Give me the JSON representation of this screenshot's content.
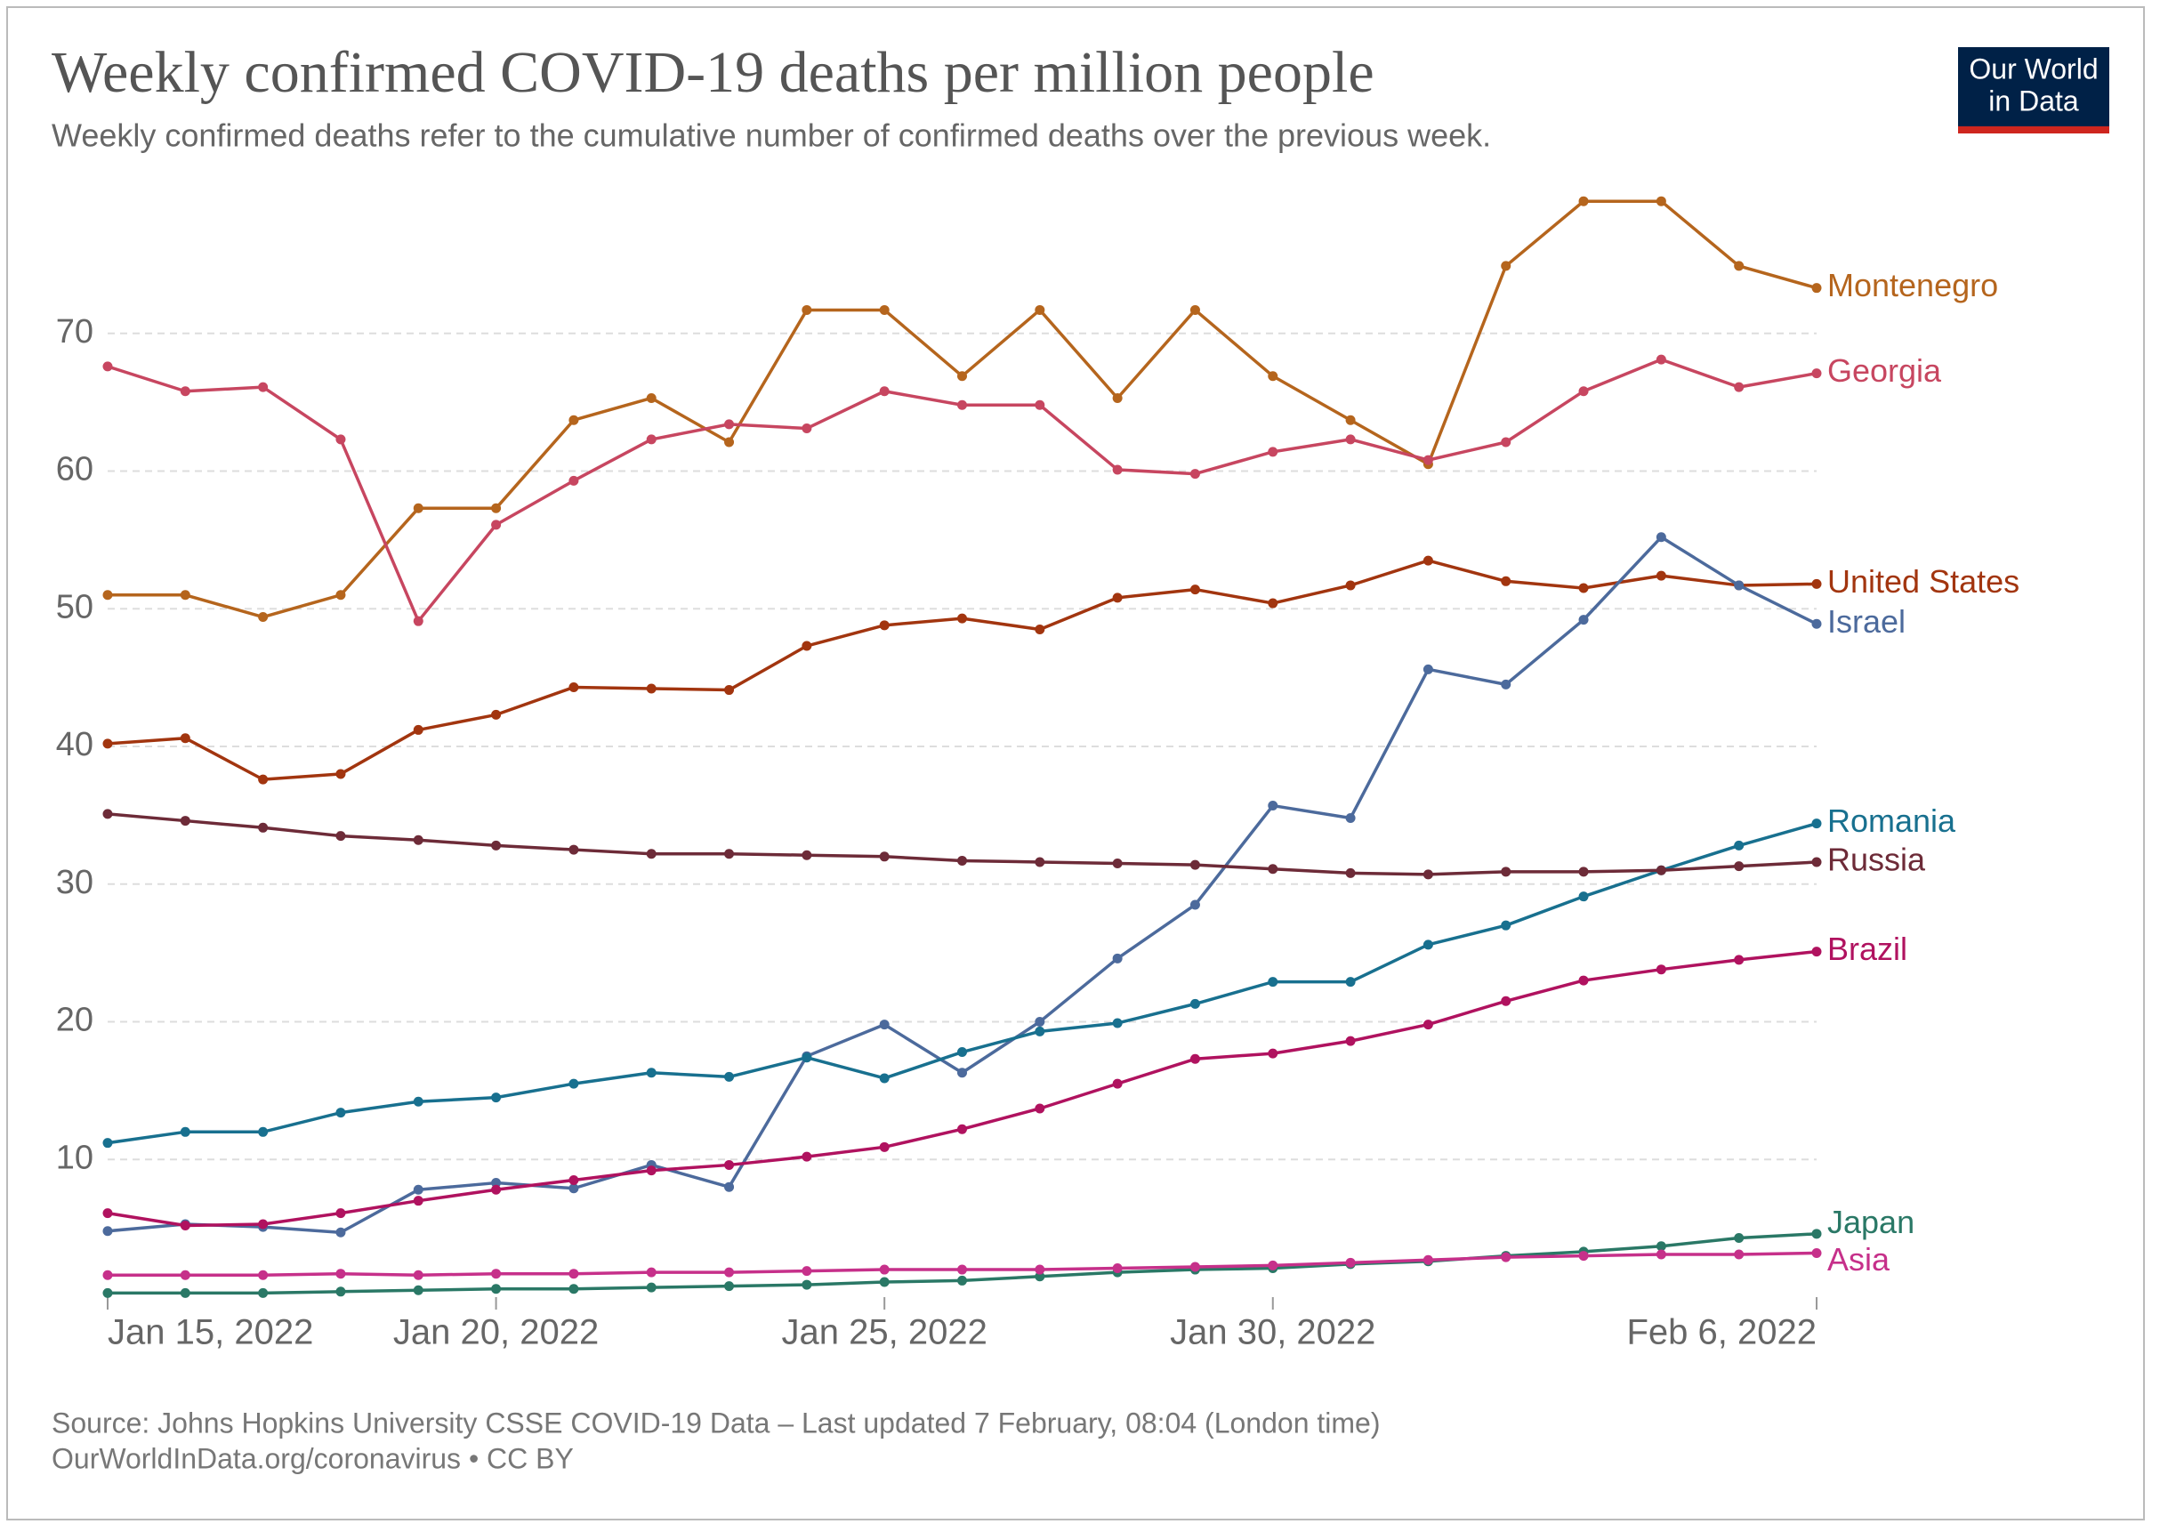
{
  "chart_data": {
    "type": "line",
    "title": "Weekly confirmed COVID-19 deaths per million people",
    "subtitle": "Weekly confirmed deaths refer to the cumulative number of confirmed deaths over the previous week.",
    "source": "Source: Johns Hopkins University CSSE COVID-19 Data – Last updated 7 February, 08:04 (London time)",
    "footer": "OurWorldInData.org/coronavirus • CC BY",
    "logo": [
      "Our World",
      "in Data"
    ],
    "x": [
      "Jan 15, 2022",
      "Jan 16, 2022",
      "Jan 17, 2022",
      "Jan 18, 2022",
      "Jan 19, 2022",
      "Jan 20, 2022",
      "Jan 21, 2022",
      "Jan 22, 2022",
      "Jan 23, 2022",
      "Jan 24, 2022",
      "Jan 25, 2022",
      "Jan 26, 2022",
      "Jan 27, 2022",
      "Jan 28, 2022",
      "Jan 29, 2022",
      "Jan 30, 2022",
      "Jan 31, 2022",
      "Feb 1, 2022",
      "Feb 2, 2022",
      "Feb 3, 2022",
      "Feb 4, 2022",
      "Feb 5, 2022",
      "Feb 6, 2022"
    ],
    "xticks": [
      "Jan 15, 2022",
      "Jan 20, 2022",
      "Jan 25, 2022",
      "Jan 30, 2022",
      "Feb 6, 2022"
    ],
    "ylim": [
      0,
      80
    ],
    "yticks": [
      10,
      20,
      30,
      40,
      50,
      60,
      70
    ],
    "grid": true,
    "series": [
      {
        "name": "Montenegro",
        "color": "#b5651d",
        "values": [
          51,
          51,
          49.4,
          51,
          57.3,
          57.3,
          63.7,
          65.3,
          62.1,
          71.7,
          71.7,
          66.9,
          71.7,
          65.3,
          71.7,
          66.9,
          63.7,
          60.5,
          74.9,
          79.6,
          79.6,
          74.9,
          73.3
        ]
      },
      {
        "name": "Georgia",
        "color": "#c74660",
        "values": [
          67.6,
          65.8,
          66.1,
          62.3,
          49.1,
          56.1,
          59.3,
          62.3,
          63.4,
          63.1,
          65.8,
          64.8,
          64.8,
          60.1,
          59.8,
          61.4,
          62.3,
          60.8,
          62.1,
          65.8,
          68.1,
          66.1,
          67.1
        ]
      },
      {
        "name": "United States",
        "color": "#a2350f",
        "values": [
          40.2,
          40.6,
          37.6,
          38.0,
          41.2,
          42.3,
          44.3,
          44.2,
          44.1,
          47.3,
          48.8,
          49.3,
          48.5,
          50.8,
          51.4,
          50.4,
          51.7,
          53.5,
          52.0,
          51.5,
          52.4,
          51.7,
          51.8
        ]
      },
      {
        "name": "Israel",
        "color": "#4c6a9c",
        "values": [
          4.8,
          5.3,
          5.1,
          4.7,
          7.8,
          8.3,
          7.9,
          9.6,
          8.0,
          17.5,
          19.8,
          16.3,
          20.0,
          24.6,
          28.5,
          35.7,
          34.8,
          45.6,
          44.5,
          49.2,
          55.2,
          51.7,
          48.9
        ]
      },
      {
        "name": "Romania",
        "color": "#18708f",
        "values": [
          11.2,
          12.0,
          12.0,
          13.4,
          14.2,
          14.5,
          15.5,
          16.3,
          16.0,
          17.4,
          15.9,
          17.8,
          19.3,
          19.9,
          21.3,
          22.9,
          22.9,
          25.6,
          27.0,
          29.1,
          31.0,
          32.8,
          34.4
        ]
      },
      {
        "name": "Russia",
        "color": "#6d2b38",
        "values": [
          35.1,
          34.6,
          34.1,
          33.5,
          33.2,
          32.8,
          32.5,
          32.2,
          32.2,
          32.1,
          32.0,
          31.7,
          31.6,
          31.5,
          31.4,
          31.1,
          30.8,
          30.7,
          30.9,
          30.9,
          31.0,
          31.3,
          31.6
        ]
      },
      {
        "name": "Brazil",
        "color": "#b0125f",
        "values": [
          6.1,
          5.2,
          5.3,
          6.1,
          7.0,
          7.8,
          8.5,
          9.2,
          9.6,
          10.2,
          10.9,
          12.2,
          13.7,
          15.5,
          17.3,
          17.7,
          18.6,
          19.8,
          21.5,
          23.0,
          23.8,
          24.5,
          25.1
        ]
      },
      {
        "name": "Japan",
        "color": "#2a7866",
        "values": [
          0.3,
          0.3,
          0.3,
          0.4,
          0.5,
          0.6,
          0.6,
          0.7,
          0.8,
          0.9,
          1.1,
          1.2,
          1.5,
          1.8,
          2.0,
          2.1,
          2.4,
          2.6,
          3.0,
          3.3,
          3.7,
          4.3,
          4.6
        ]
      },
      {
        "name": "Asia",
        "color": "#c6308a",
        "values": [
          1.6,
          1.6,
          1.6,
          1.7,
          1.6,
          1.7,
          1.7,
          1.8,
          1.8,
          1.9,
          2.0,
          2.0,
          2.0,
          2.1,
          2.2,
          2.3,
          2.5,
          2.7,
          2.9,
          3.0,
          3.1,
          3.1,
          3.2
        ]
      }
    ]
  }
}
